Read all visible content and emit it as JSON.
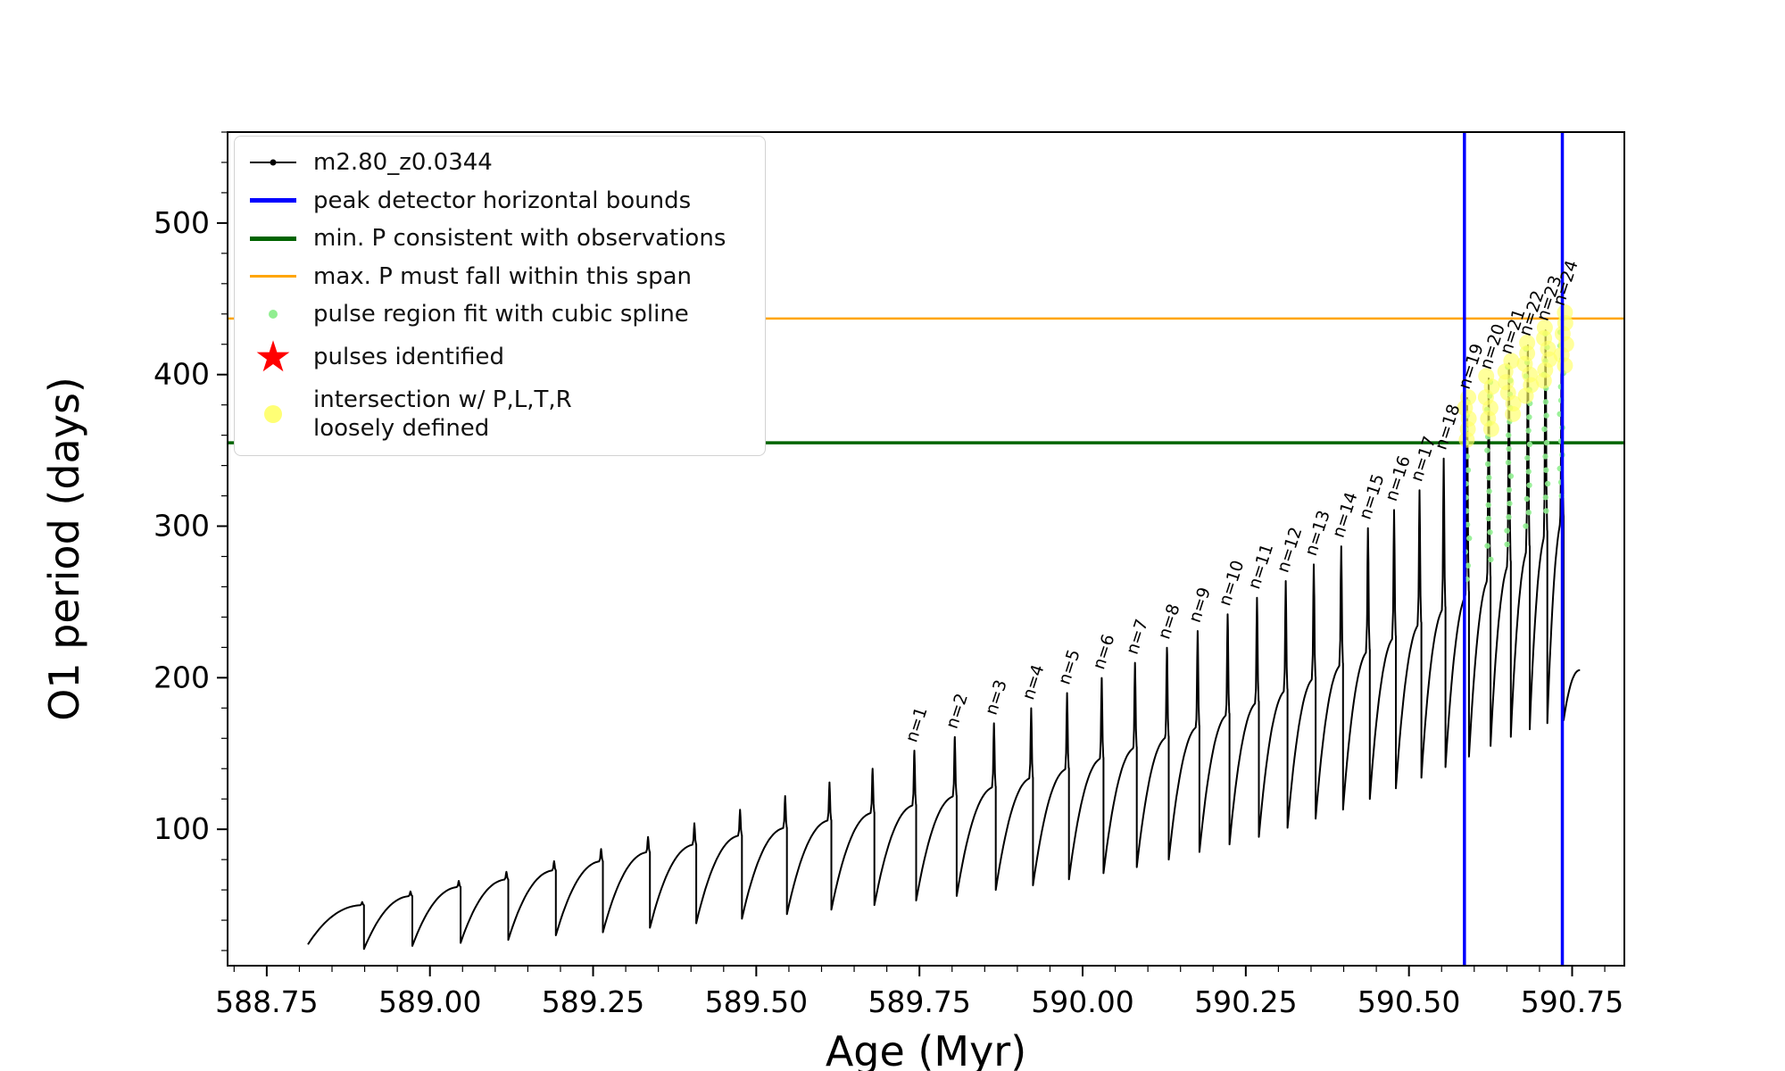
{
  "legend": {
    "star_glyph": "★",
    "items": [
      {
        "label": "m2.80_z0.0344",
        "marker": "line-dot"
      },
      {
        "label": "peak detector horizontal bounds",
        "marker": "blue-line"
      },
      {
        "label": "min. P consistent with observations",
        "marker": "green-line"
      },
      {
        "label": "max. P must fall within this span",
        "marker": "orange-line"
      },
      {
        "label": "pulse region fit with cubic spline",
        "marker": "green-dot"
      },
      {
        "label": "pulses identified",
        "marker": "red-star"
      },
      {
        "label": "intersection w/ P,L,T,R\nloosely defined",
        "marker": "yellow-dot"
      }
    ]
  },
  "chart_data": {
    "type": "line",
    "series_name": "m2.80_z0.0344",
    "title": "",
    "xlabel": "Age (Myr)",
    "ylabel": "O1 period (days)",
    "xlim": [
      588.69,
      590.83
    ],
    "ylim": [
      10,
      560
    ],
    "x_tick_values": [
      588.75,
      589.0,
      589.25,
      589.5,
      589.75,
      590.0,
      590.25,
      590.5,
      590.75
    ],
    "x_tick_labels": [
      "588.75",
      "589.00",
      "589.25",
      "589.50",
      "589.75",
      "590.00",
      "590.25",
      "590.50",
      "590.75"
    ],
    "y_tick_values": [
      100,
      200,
      300,
      400,
      500
    ],
    "y_tick_labels": [
      "100",
      "200",
      "300",
      "400",
      "500"
    ],
    "x_minor_step": 0.05,
    "y_minor_step": 20,
    "hline_min_P": 355,
    "hline_max_P": 437,
    "vlines": [
      590.585,
      590.735
    ],
    "t0": 588.813,
    "pulses": [
      {
        "label": "",
        "t": 588.899,
        "p0": 24,
        "pt": 50,
        "pk": 52
      },
      {
        "label": "",
        "t": 588.973,
        "p0": 21,
        "pt": 56,
        "pk": 59
      },
      {
        "label": "",
        "t": 589.047,
        "p0": 23,
        "pt": 62,
        "pk": 66
      },
      {
        "label": "",
        "t": 589.12,
        "p0": 25,
        "pt": 67,
        "pk": 72
      },
      {
        "label": "",
        "t": 589.193,
        "p0": 27,
        "pt": 73,
        "pk": 79
      },
      {
        "label": "",
        "t": 589.265,
        "p0": 30,
        "pt": 79,
        "pk": 87
      },
      {
        "label": "",
        "t": 589.337,
        "p0": 32,
        "pt": 85,
        "pk": 95
      },
      {
        "label": "",
        "t": 589.408,
        "p0": 35,
        "pt": 90,
        "pk": 104
      },
      {
        "label": "",
        "t": 589.478,
        "p0": 38,
        "pt": 96,
        "pk": 113
      },
      {
        "label": "",
        "t": 589.547,
        "p0": 41,
        "pt": 101,
        "pk": 122
      },
      {
        "label": "",
        "t": 589.615,
        "p0": 44,
        "pt": 106,
        "pk": 131
      },
      {
        "label": "",
        "t": 589.681,
        "p0": 47,
        "pt": 111,
        "pk": 140
      },
      {
        "label": "n=1",
        "t": 589.745,
        "p0": 50,
        "pt": 116,
        "pk": 152
      },
      {
        "label": "n=2",
        "t": 589.807,
        "p0": 53,
        "pt": 122,
        "pk": 161
      },
      {
        "label": "n=3",
        "t": 589.867,
        "p0": 56,
        "pt": 128,
        "pk": 170
      },
      {
        "label": "n=4",
        "t": 589.924,
        "p0": 60,
        "pt": 134,
        "pk": 180
      },
      {
        "label": "n=5",
        "t": 589.979,
        "p0": 63,
        "pt": 140,
        "pk": 190
      },
      {
        "label": "n=6",
        "t": 590.032,
        "p0": 67,
        "pt": 147,
        "pk": 200
      },
      {
        "label": "n=7",
        "t": 590.083,
        "p0": 71,
        "pt": 154,
        "pk": 210
      },
      {
        "label": "n=8",
        "t": 590.132,
        "p0": 75,
        "pt": 161,
        "pk": 220
      },
      {
        "label": "n=9",
        "t": 590.179,
        "p0": 80,
        "pt": 168,
        "pk": 231
      },
      {
        "label": "n=10",
        "t": 590.225,
        "p0": 85,
        "pt": 176,
        "pk": 242
      },
      {
        "label": "n=11",
        "t": 590.27,
        "p0": 90,
        "pt": 184,
        "pk": 253
      },
      {
        "label": "n=12",
        "t": 590.314,
        "p0": 95,
        "pt": 192,
        "pk": 264
      },
      {
        "label": "n=13",
        "t": 590.357,
        "p0": 101,
        "pt": 200,
        "pk": 275
      },
      {
        "label": "n=14",
        "t": 590.399,
        "p0": 107,
        "pt": 209,
        "pk": 287
      },
      {
        "label": "n=15",
        "t": 590.44,
        "p0": 113,
        "pt": 218,
        "pk": 299
      },
      {
        "label": "n=16",
        "t": 590.48,
        "p0": 120,
        "pt": 227,
        "pk": 311
      },
      {
        "label": "n=17",
        "t": 590.519,
        "p0": 127,
        "pt": 236,
        "pk": 324
      },
      {
        "label": "n=18",
        "t": 590.556,
        "p0": 134,
        "pt": 246,
        "pk": 345
      },
      {
        "label": "n=19",
        "t": 590.592,
        "p0": 141,
        "pt": 256,
        "pk": 385
      },
      {
        "label": "n=20",
        "t": 590.625,
        "p0": 148,
        "pt": 266,
        "pk": 398
      },
      {
        "label": "n=21",
        "t": 590.656,
        "p0": 155,
        "pt": 276,
        "pk": 408
      },
      {
        "label": "n=22",
        "t": 590.685,
        "p0": 161,
        "pt": 286,
        "pk": 420
      },
      {
        "label": "n=23",
        "t": 590.712,
        "p0": 166,
        "pt": 296,
        "pk": 430
      },
      {
        "label": "n=24",
        "t": 590.737,
        "p0": 170,
        "pt": 306,
        "pk": 440
      },
      {
        "label": "",
        "t": 590.762,
        "p0": 172,
        "pt": 205,
        "pk": null
      }
    ],
    "colors": {
      "series": "#000000",
      "bounds": "#0000ff",
      "min_p": "#006400",
      "max_p": "#ffa500",
      "spline": "#90ee90",
      "pulses": "#ff0000",
      "intersection": "#ffff66"
    }
  }
}
